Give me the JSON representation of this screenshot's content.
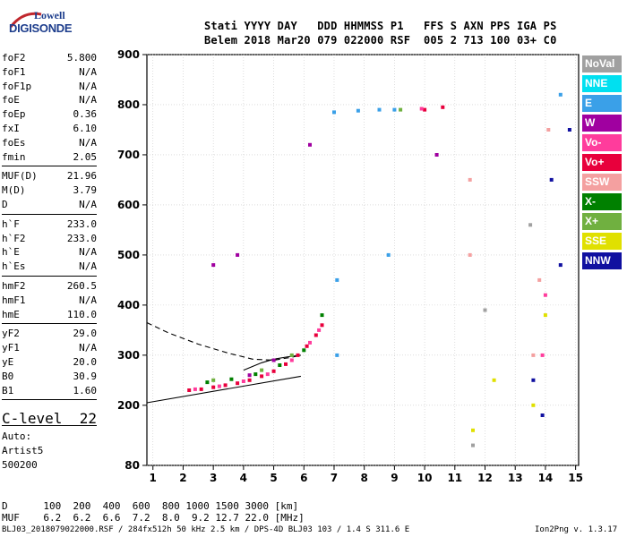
{
  "logo": {
    "line1": "Lowell",
    "line2": "DIGISONDE"
  },
  "header": {
    "row1": "Stati YYYY DAY   DDD HHMMSS P1   FFS S AXN PPS IGA PS",
    "row2": "Belem 2018 Mar20 079 022000 RSF  005 2 713 100 03+ C0"
  },
  "params": [
    {
      "k": "foF2",
      "v": "5.800"
    },
    {
      "k": "foF1",
      "v": "N/A"
    },
    {
      "k": "foF1p",
      "v": "N/A"
    },
    {
      "k": "foE",
      "v": "N/A"
    },
    {
      "k": "foEp",
      "v": "0.36"
    },
    {
      "k": "fxI",
      "v": "6.10"
    },
    {
      "k": "foEs",
      "v": "N/A"
    },
    {
      "k": "fmin",
      "v": "2.05"
    },
    {
      "k": "MUF(D)",
      "v": "21.96"
    },
    {
      "k": "M(D)",
      "v": "3.79"
    },
    {
      "k": "D",
      "v": "N/A"
    },
    {
      "k": "h`F",
      "v": "233.0"
    },
    {
      "k": "h`F2",
      "v": "233.0"
    },
    {
      "k": "h`E",
      "v": "N/A"
    },
    {
      "k": "h`Es",
      "v": "N/A"
    },
    {
      "k": "hmF2",
      "v": "260.5"
    },
    {
      "k": "hmF1",
      "v": "N/A"
    },
    {
      "k": "hmE",
      "v": "110.0"
    },
    {
      "k": "yF2",
      "v": "29.0"
    },
    {
      "k": "yF1",
      "v": "N/A"
    },
    {
      "k": "yE",
      "v": "20.0"
    },
    {
      "k": "B0",
      "v": "30.9"
    },
    {
      "k": "B1",
      "v": "1.60"
    }
  ],
  "clevel": {
    "k": "C-level",
    "v": "22"
  },
  "auto": [
    "Auto:",
    "Artist5",
    "500200"
  ],
  "legend": [
    {
      "label": "NoVal",
      "color": "#a0a0a0"
    },
    {
      "label": "NNE",
      "color": "#00e0f0"
    },
    {
      "label": "E",
      "color": "#3aa0e8"
    },
    {
      "label": "W",
      "color": "#a000a0"
    },
    {
      "label": "Vo-",
      "color": "#ff3c9c"
    },
    {
      "label": "Vo+",
      "color": "#e8003c"
    },
    {
      "label": "SSW",
      "color": "#f4a0a0"
    },
    {
      "label": "X-",
      "color": "#008000"
    },
    {
      "label": "X+",
      "color": "#70b040"
    },
    {
      "label": "SSE",
      "color": "#e0e000"
    },
    {
      "label": "NNW",
      "color": "#1010a0"
    }
  ],
  "muf_table": {
    "d_label": "D",
    "d_values": "100  200  400  600  800 1000 1500 3000 [km]",
    "m_label": "MUF",
    "m_values": "6.2  6.2  6.6  7.2  8.0  9.2 12.7 22.0 [MHz]"
  },
  "footer": {
    "left": "BLJ03_2018079022000.RSF / 284fx512h 50 kHz 2.5 km / DPS-4D BLJ03 103 / 1.4 S 311.6 E",
    "right": "Ion2Png v. 1.3.17"
  },
  "chart_data": {
    "type": "scatter",
    "title": "",
    "xlabel": "",
    "ylabel": "",
    "xlim": [
      0.8,
      15.1
    ],
    "ylim": [
      80,
      900
    ],
    "xticks": [
      1,
      2,
      3,
      4,
      5,
      6,
      7,
      8,
      9,
      10,
      11,
      12,
      13,
      14,
      15
    ],
    "yticks": [
      80,
      200,
      300,
      400,
      500,
      600,
      700,
      800,
      900
    ],
    "grid": true,
    "series": [
      {
        "name": "Vo+",
        "color": "#e8003c",
        "points": [
          [
            2.2,
            230
          ],
          [
            2.6,
            232
          ],
          [
            3.0,
            236
          ],
          [
            3.4,
            240
          ],
          [
            3.8,
            244
          ],
          [
            4.2,
            250
          ],
          [
            4.6,
            258
          ],
          [
            5.0,
            268
          ],
          [
            5.4,
            282
          ],
          [
            5.8,
            300
          ],
          [
            6.1,
            318
          ],
          [
            6.4,
            340
          ],
          [
            6.6,
            360
          ],
          [
            10.0,
            790
          ],
          [
            10.6,
            795
          ]
        ]
      },
      {
        "name": "Vo-",
        "color": "#ff3c9c",
        "points": [
          [
            2.4,
            232
          ],
          [
            3.2,
            238
          ],
          [
            4.0,
            248
          ],
          [
            4.8,
            262
          ],
          [
            5.6,
            290
          ],
          [
            6.2,
            325
          ],
          [
            6.5,
            350
          ],
          [
            9.9,
            792
          ],
          [
            13.9,
            300
          ],
          [
            14.0,
            420
          ]
        ]
      },
      {
        "name": "X-",
        "color": "#008000",
        "points": [
          [
            2.8,
            246
          ],
          [
            3.6,
            252
          ],
          [
            4.4,
            262
          ],
          [
            5.2,
            280
          ],
          [
            6.0,
            310
          ],
          [
            6.6,
            380
          ]
        ]
      },
      {
        "name": "X+",
        "color": "#70b040",
        "points": [
          [
            3.0,
            250
          ],
          [
            4.6,
            270
          ],
          [
            5.6,
            300
          ],
          [
            9.2,
            790
          ]
        ]
      },
      {
        "name": "W",
        "color": "#a000a0",
        "points": [
          [
            3.0,
            480
          ],
          [
            3.8,
            500
          ],
          [
            4.2,
            260
          ],
          [
            5.0,
            290
          ],
          [
            6.2,
            720
          ],
          [
            10.4,
            700
          ]
        ]
      },
      {
        "name": "E",
        "color": "#3aa0e8",
        "points": [
          [
            7.0,
            785
          ],
          [
            7.8,
            788
          ],
          [
            8.5,
            790
          ],
          [
            9.0,
            790
          ],
          [
            7.1,
            450
          ],
          [
            7.1,
            300
          ],
          [
            8.8,
            500
          ],
          [
            14.5,
            820
          ]
        ]
      },
      {
        "name": "SSW",
        "color": "#f4a0a0",
        "points": [
          [
            11.5,
            500
          ],
          [
            11.5,
            650
          ],
          [
            13.6,
            300
          ],
          [
            13.8,
            450
          ],
          [
            14.1,
            750
          ]
        ]
      },
      {
        "name": "SSE",
        "color": "#e0e000",
        "points": [
          [
            11.6,
            150
          ],
          [
            13.6,
            200
          ],
          [
            14.0,
            380
          ],
          [
            12.3,
            250
          ]
        ]
      },
      {
        "name": "NNW",
        "color": "#1010a0",
        "points": [
          [
            13.6,
            250
          ],
          [
            13.9,
            180
          ],
          [
            14.2,
            650
          ],
          [
            14.5,
            480
          ],
          [
            14.8,
            750
          ]
        ]
      },
      {
        "name": "NoVal",
        "color": "#a0a0a0",
        "points": [
          [
            11.6,
            120
          ],
          [
            13.5,
            560
          ],
          [
            12.0,
            390
          ]
        ]
      }
    ],
    "profile_lines": [
      {
        "style": "solid",
        "points": [
          [
            0.8,
            205
          ],
          [
            5.9,
            258
          ]
        ]
      },
      {
        "style": "solid",
        "points": [
          [
            4.0,
            270
          ],
          [
            4.6,
            285
          ],
          [
            5.0,
            292
          ],
          [
            5.5,
            297
          ],
          [
            5.9,
            300
          ]
        ]
      },
      {
        "style": "dashed",
        "points": [
          [
            0.8,
            365
          ],
          [
            1.5,
            345
          ],
          [
            2.5,
            322
          ],
          [
            3.5,
            304
          ],
          [
            4.3,
            292
          ],
          [
            5.0,
            290
          ],
          [
            5.6,
            296
          ],
          [
            5.9,
            300
          ]
        ]
      }
    ]
  }
}
